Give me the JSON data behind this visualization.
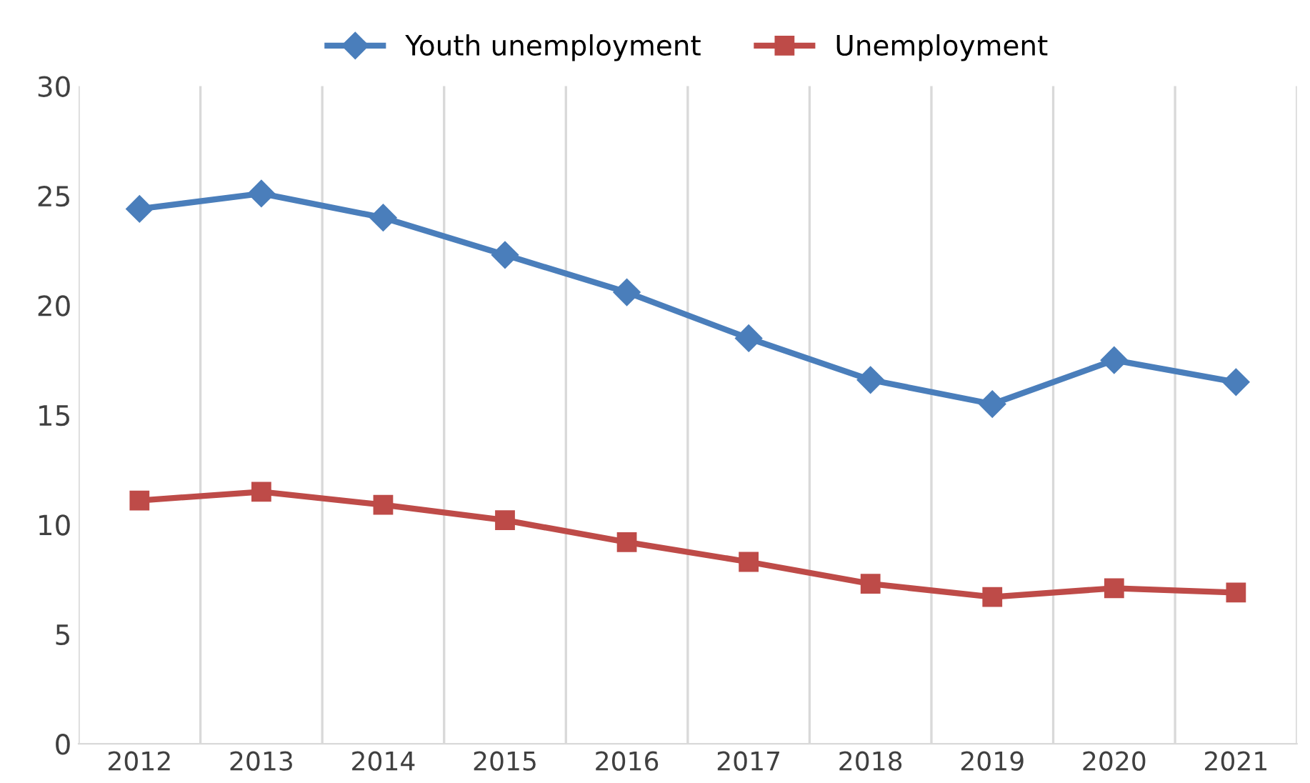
{
  "chart_data": {
    "type": "line",
    "categories": [
      "2012",
      "2013",
      "2014",
      "2015",
      "2016",
      "2017",
      "2018",
      "2019",
      "2020",
      "2021"
    ],
    "series": [
      {
        "name": "Youth unemployment",
        "color": "#4a7ebb",
        "marker": "diamond",
        "values": [
          24.4,
          25.1,
          24.0,
          22.3,
          20.6,
          18.5,
          16.6,
          15.5,
          17.5,
          16.5
        ]
      },
      {
        "name": "Unemployment",
        "color": "#be4b48",
        "marker": "square",
        "values": [
          11.1,
          11.5,
          10.9,
          10.2,
          9.2,
          8.3,
          7.3,
          6.7,
          7.1,
          6.9
        ]
      }
    ],
    "ylim": [
      0,
      30
    ],
    "yticks": [
      0,
      5,
      10,
      15,
      20,
      25,
      30
    ],
    "grid": "x",
    "legend": "top",
    "line_style": "solid"
  }
}
